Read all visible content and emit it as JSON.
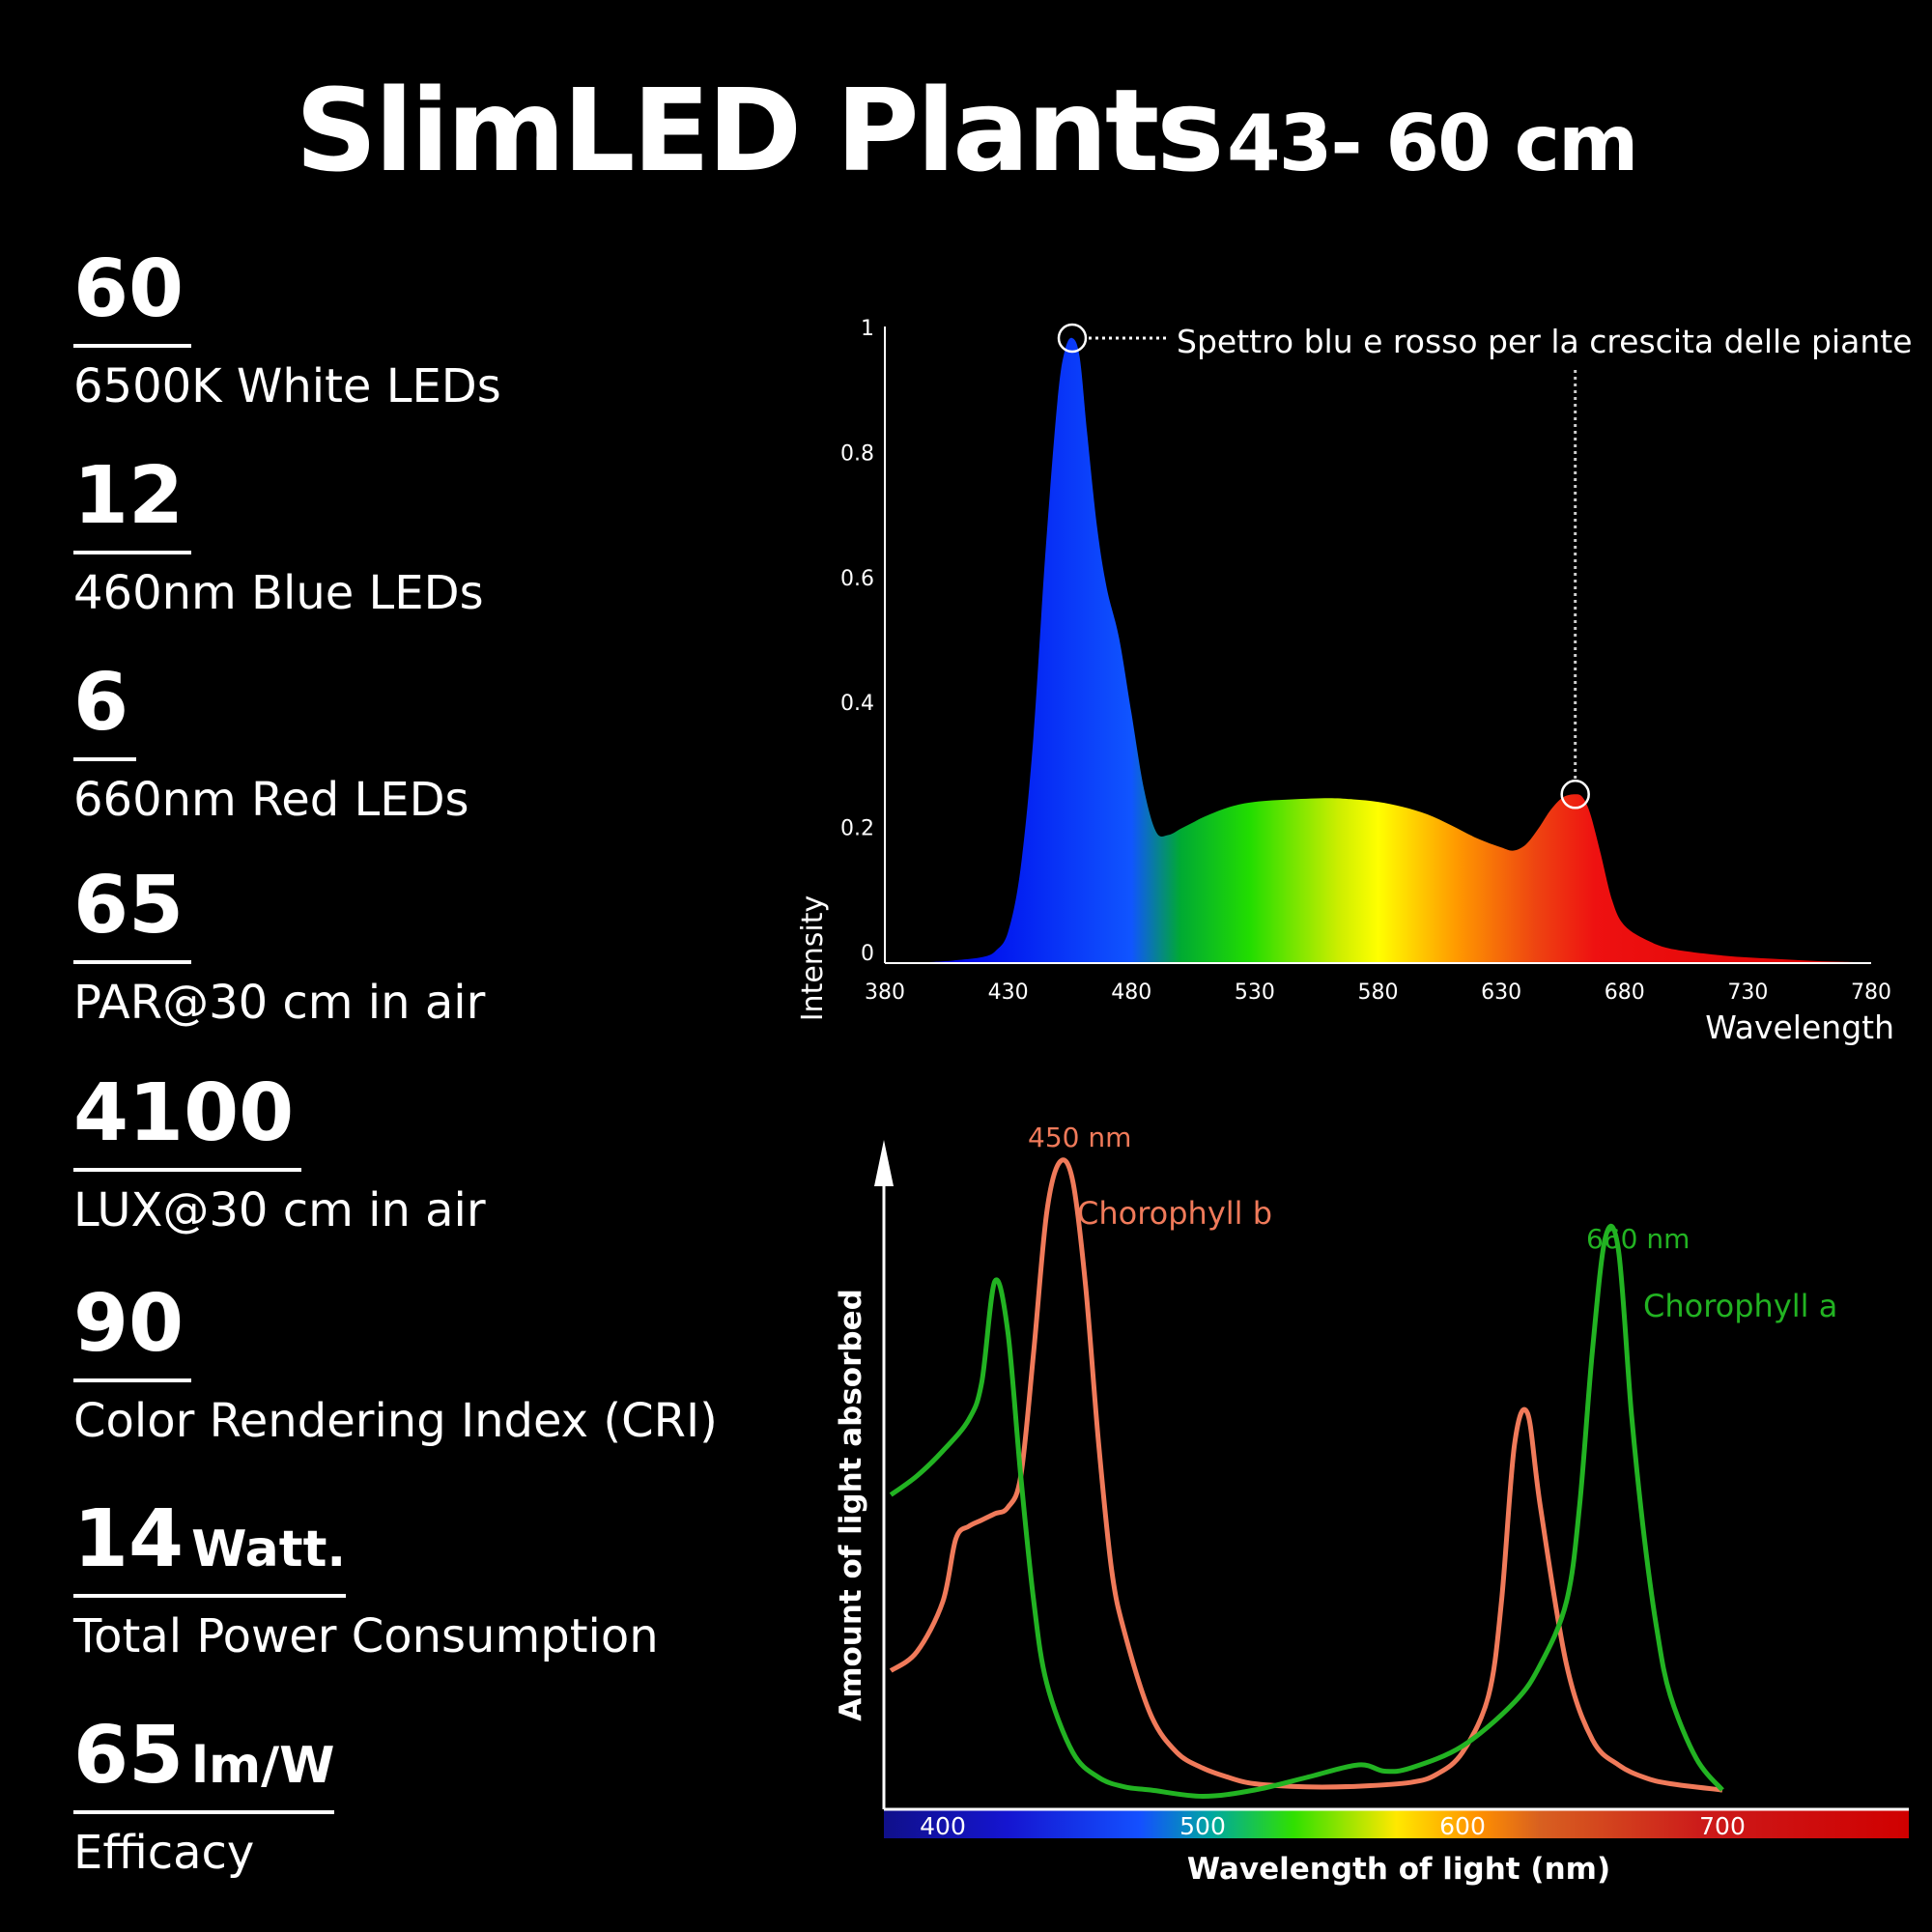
{
  "title": {
    "main": "SlimLED Plants",
    "sub": "43- 60 cm"
  },
  "specs": [
    {
      "value": "60",
      "unit": "",
      "label": "6500K White LEDs"
    },
    {
      "value": "12",
      "unit": "",
      "label": "460nm Blue LEDs"
    },
    {
      "value": "6",
      "unit": "",
      "label": "660nm Red LEDs"
    },
    {
      "value": "65",
      "unit": "",
      "label": "PAR@30 cm in air"
    },
    {
      "value": "4100",
      "unit": "",
      "label": "LUX@30 cm in air"
    },
    {
      "value": "90",
      "unit": "",
      "label": "Color Rendering Index (CRI)"
    },
    {
      "value": "14",
      "unit": "Watt.",
      "label": "Total Power Consumption"
    },
    {
      "value": "65",
      "unit": "lm/W",
      "label": "Efficacy"
    }
  ],
  "chart_data": [
    {
      "type": "area",
      "title": "",
      "xlabel": "Wavelength",
      "ylabel": "Intensity",
      "xlim": [
        380,
        780
      ],
      "ylim": [
        0,
        1
      ],
      "xticks": [
        380,
        430,
        480,
        530,
        580,
        630,
        680,
        730,
        780
      ],
      "yticks": [
        0,
        0.2,
        0.4,
        0.6,
        0.8,
        1
      ],
      "ytick_labels": [
        "0",
        "0.2",
        "0.4",
        "0.6",
        "0.8",
        "1"
      ],
      "annotation": "Spettro blu e rosso per la crescita delle piante",
      "highlight_points": [
        {
          "x": 456,
          "y": 1.0
        },
        {
          "x": 660,
          "y": 0.27
        }
      ],
      "series": [
        {
          "x": [
            380,
            400,
            410,
            420,
            425,
            430,
            435,
            440,
            445,
            450,
            453,
            456,
            459,
            462,
            466,
            470,
            475,
            480,
            485,
            490,
            495,
            500,
            505,
            510,
            520,
            530,
            545,
            560,
            570,
            580,
            590,
            600,
            610,
            620,
            630,
            635,
            640,
            645,
            650,
            655,
            660,
            663,
            666,
            670,
            675,
            680,
            690,
            700,
            720,
            740,
            760,
            780
          ],
          "y": [
            0,
            0.002,
            0.005,
            0.01,
            0.02,
            0.05,
            0.15,
            0.35,
            0.65,
            0.9,
            0.98,
            1.0,
            0.97,
            0.85,
            0.7,
            0.6,
            0.52,
            0.4,
            0.28,
            0.21,
            0.205,
            0.215,
            0.225,
            0.235,
            0.25,
            0.258,
            0.262,
            0.264,
            0.262,
            0.258,
            0.25,
            0.238,
            0.22,
            0.2,
            0.185,
            0.18,
            0.19,
            0.215,
            0.245,
            0.265,
            0.27,
            0.265,
            0.24,
            0.18,
            0.1,
            0.06,
            0.035,
            0.022,
            0.012,
            0.007,
            0.003,
            0.001
          ]
        }
      ]
    },
    {
      "type": "line",
      "xlabel": "Wavelength of light (nm)",
      "ylabel": "Amount of light absorbed",
      "xlim": [
        380,
        780
      ],
      "xticks": [
        400,
        500,
        600,
        700
      ],
      "peak_labels": [
        {
          "text": "450 nm",
          "x": 450
        },
        {
          "text": "660 nm",
          "x": 660
        }
      ],
      "series": [
        {
          "name": "Chorophyll b",
          "color": "#f07a5a",
          "x": [
            380,
            390,
            400,
            405,
            410,
            415,
            420,
            425,
            430,
            435,
            440,
            445,
            450,
            455,
            460,
            465,
            470,
            480,
            490,
            500,
            510,
            520,
            540,
            560,
            580,
            590,
            600,
            610,
            615,
            620,
            625,
            630,
            640,
            650,
            660,
            670,
            680,
            700
          ],
          "y": [
            0.19,
            0.22,
            0.3,
            0.4,
            0.42,
            0.43,
            0.44,
            0.45,
            0.5,
            0.7,
            0.92,
            1.0,
            0.97,
            0.8,
            0.55,
            0.35,
            0.25,
            0.12,
            0.06,
            0.035,
            0.02,
            0.01,
            0.005,
            0.006,
            0.012,
            0.025,
            0.06,
            0.15,
            0.3,
            0.55,
            0.6,
            0.45,
            0.2,
            0.08,
            0.04,
            0.02,
            0.01,
            0
          ]
        },
        {
          "name": "Chorophyll a",
          "color": "#22b322",
          "x": [
            380,
            390,
            400,
            410,
            415,
            420,
            425,
            430,
            435,
            440,
            450,
            460,
            470,
            480,
            500,
            520,
            540,
            560,
            570,
            580,
            600,
            620,
            630,
            640,
            645,
            650,
            655,
            660,
            665,
            670,
            675,
            680,
            690,
            700
          ],
          "y": [
            0.47,
            0.5,
            0.54,
            0.59,
            0.65,
            0.81,
            0.73,
            0.5,
            0.3,
            0.17,
            0.06,
            0.02,
            0.005,
            0,
            -0.01,
            0,
            0.02,
            0.04,
            0.03,
            0.035,
            0.07,
            0.14,
            0.2,
            0.3,
            0.45,
            0.7,
            0.88,
            0.86,
            0.6,
            0.4,
            0.25,
            0.15,
            0.05,
            0
          ]
        }
      ]
    }
  ],
  "colors": {
    "background": "#000000",
    "text": "#ffffff"
  }
}
